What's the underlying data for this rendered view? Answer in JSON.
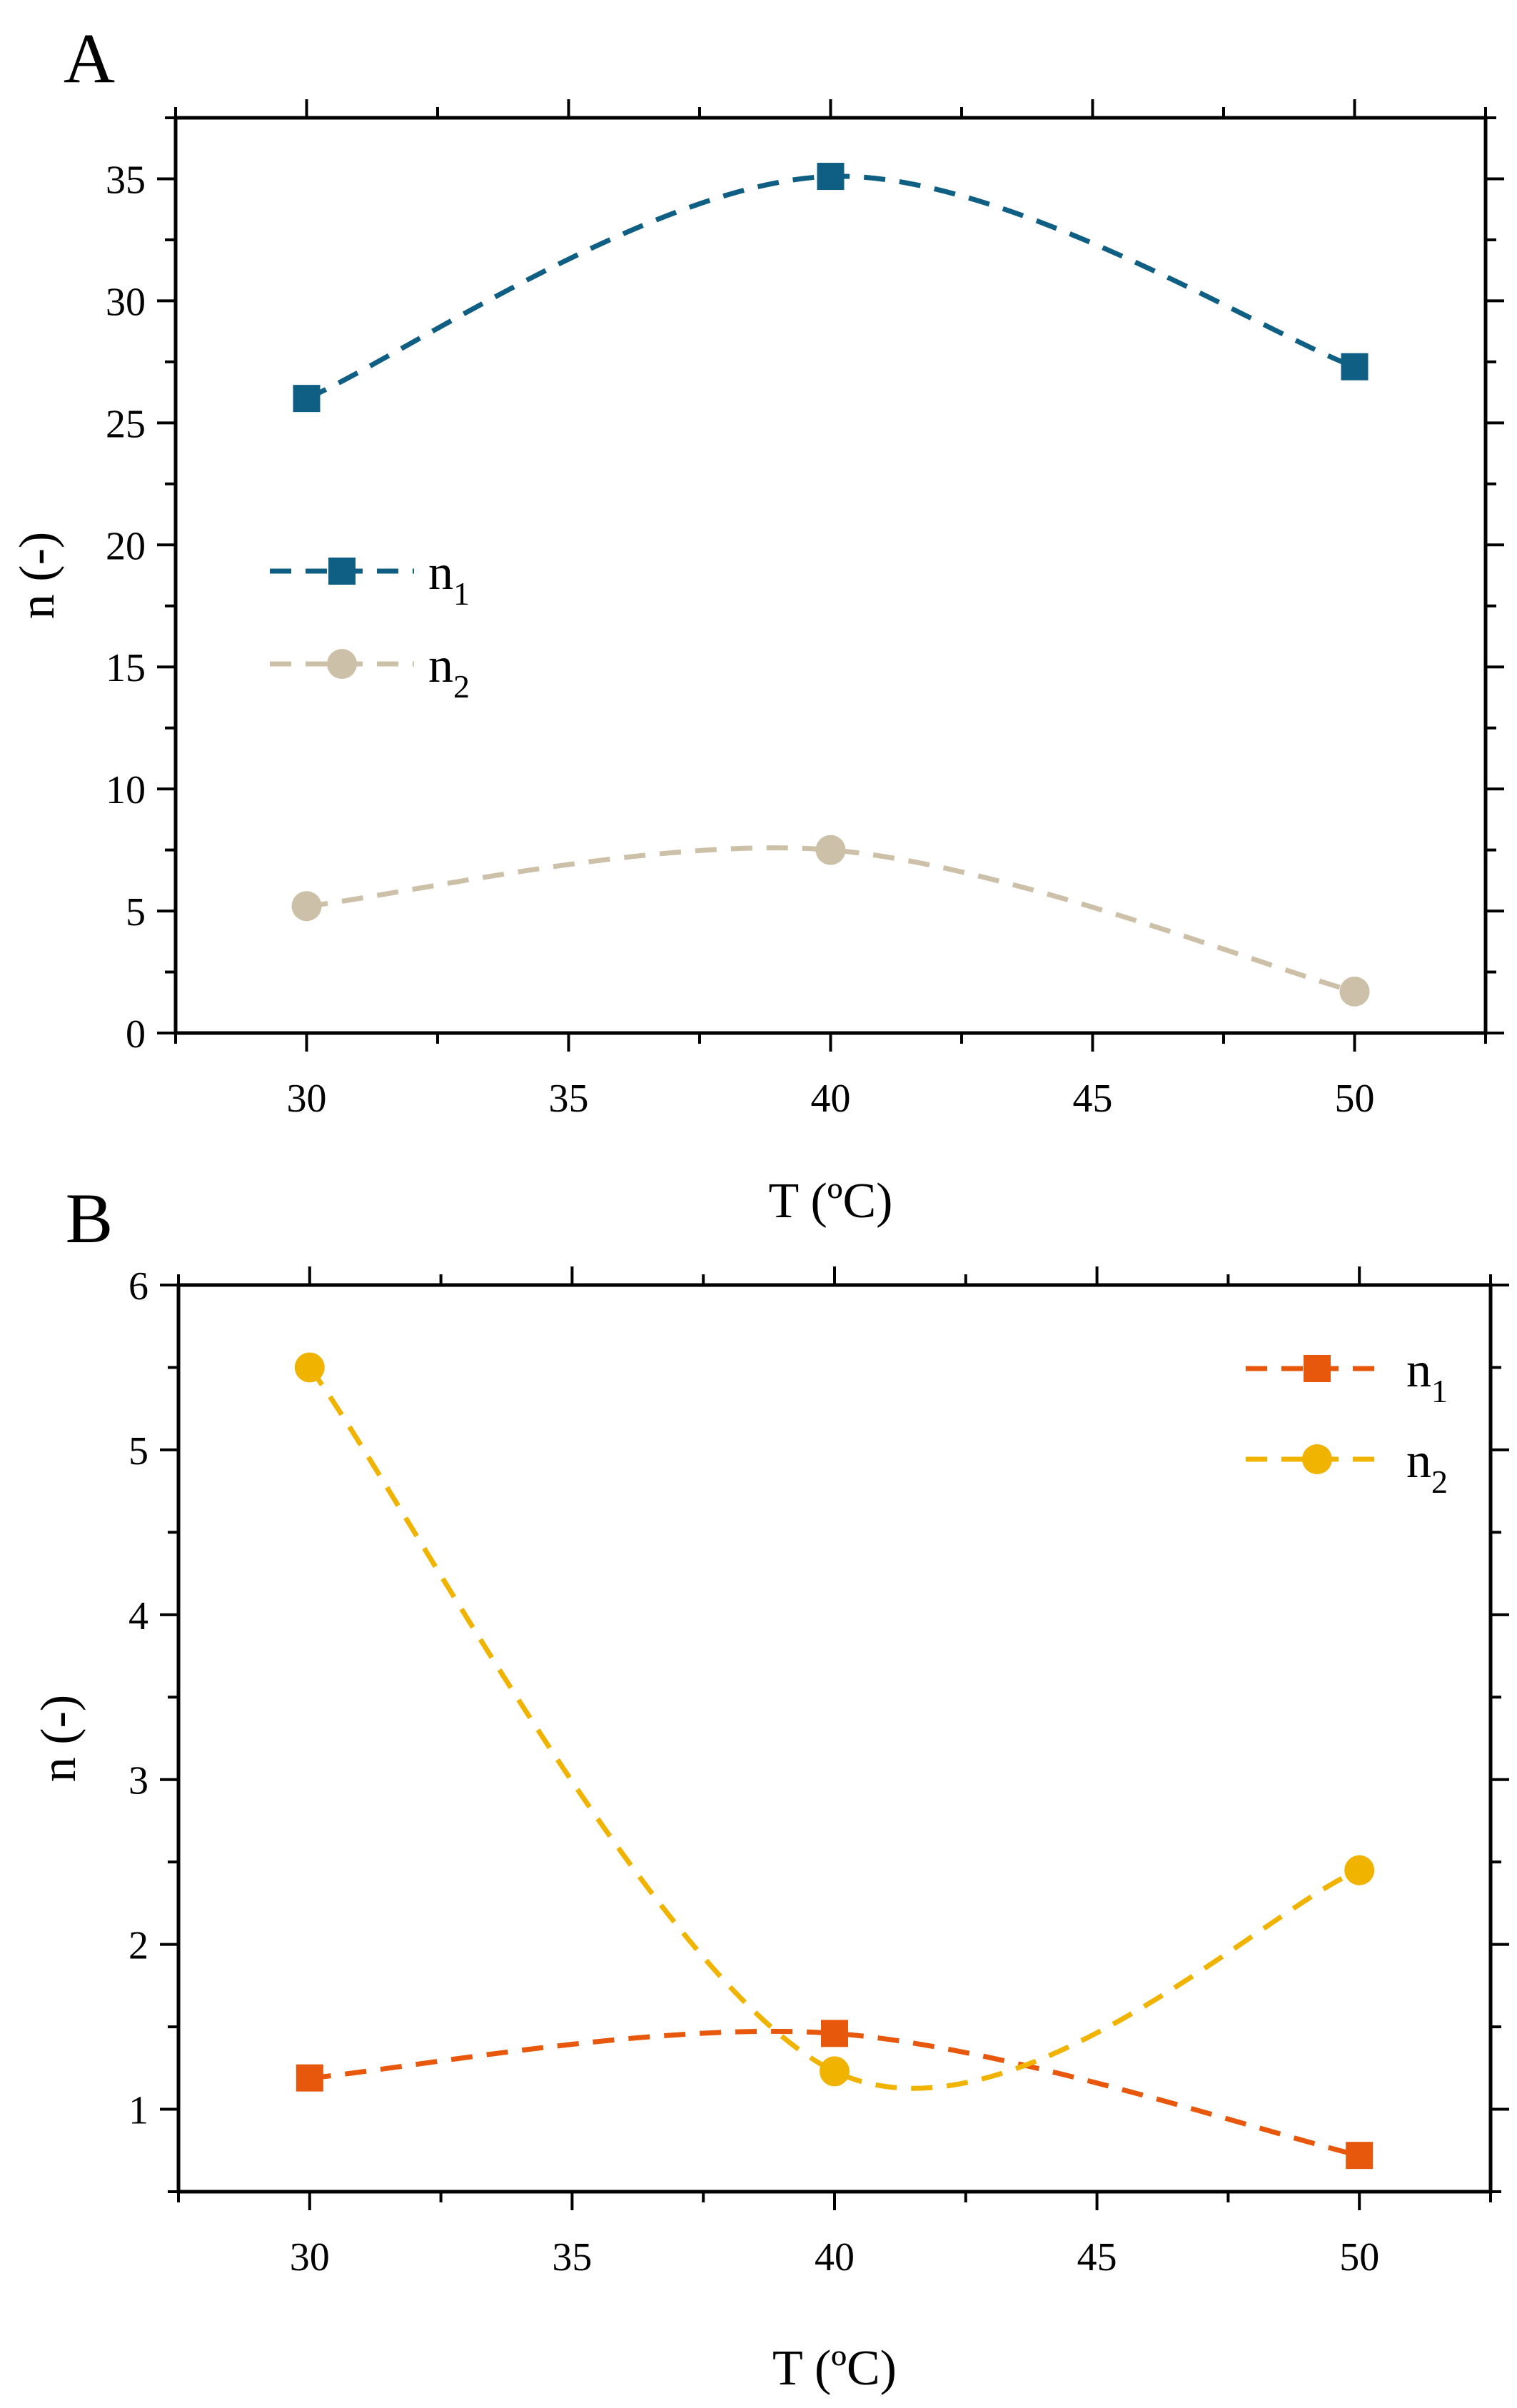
{
  "chart_data": [
    {
      "panel_label": "A",
      "type": "line",
      "xlabel": "T (ºC)",
      "ylabel": "n (-)",
      "xlim": [
        27.5,
        52.5
      ],
      "ylim": [
        0,
        37.5
      ],
      "xticks": [
        30,
        35,
        40,
        45,
        50
      ],
      "yticks": [
        0,
        5,
        10,
        15,
        20,
        25,
        30,
        35
      ],
      "x": [
        30,
        40,
        50
      ],
      "legend_position": "center-left",
      "series": [
        {
          "name": "n",
          "subscript": "1",
          "marker": "square",
          "color": "#0e5f83",
          "values": [
            26.0,
            35.1,
            27.3
          ]
        },
        {
          "name": "n",
          "subscript": "2",
          "marker": "circle",
          "color": "#cdc0a8",
          "values": [
            5.2,
            7.5,
            1.7
          ]
        }
      ]
    },
    {
      "panel_label": "B",
      "type": "line",
      "xlabel": "T (ºC)",
      "ylabel": "n (-)",
      "xlim": [
        27.5,
        52.5
      ],
      "ylim": [
        0.5,
        6
      ],
      "xticks": [
        30,
        35,
        40,
        45,
        50
      ],
      "yticks": [
        1,
        2,
        3,
        4,
        5,
        6
      ],
      "x": [
        30,
        40,
        50
      ],
      "legend_position": "top-right",
      "series": [
        {
          "name": "n",
          "subscript": "1",
          "marker": "square",
          "color": "#e8580c",
          "values": [
            1.19,
            1.46,
            0.72
          ]
        },
        {
          "name": "n",
          "subscript": "2",
          "marker": "circle",
          "color": "#f0b400",
          "values": [
            5.5,
            1.23,
            2.45
          ]
        }
      ]
    }
  ]
}
